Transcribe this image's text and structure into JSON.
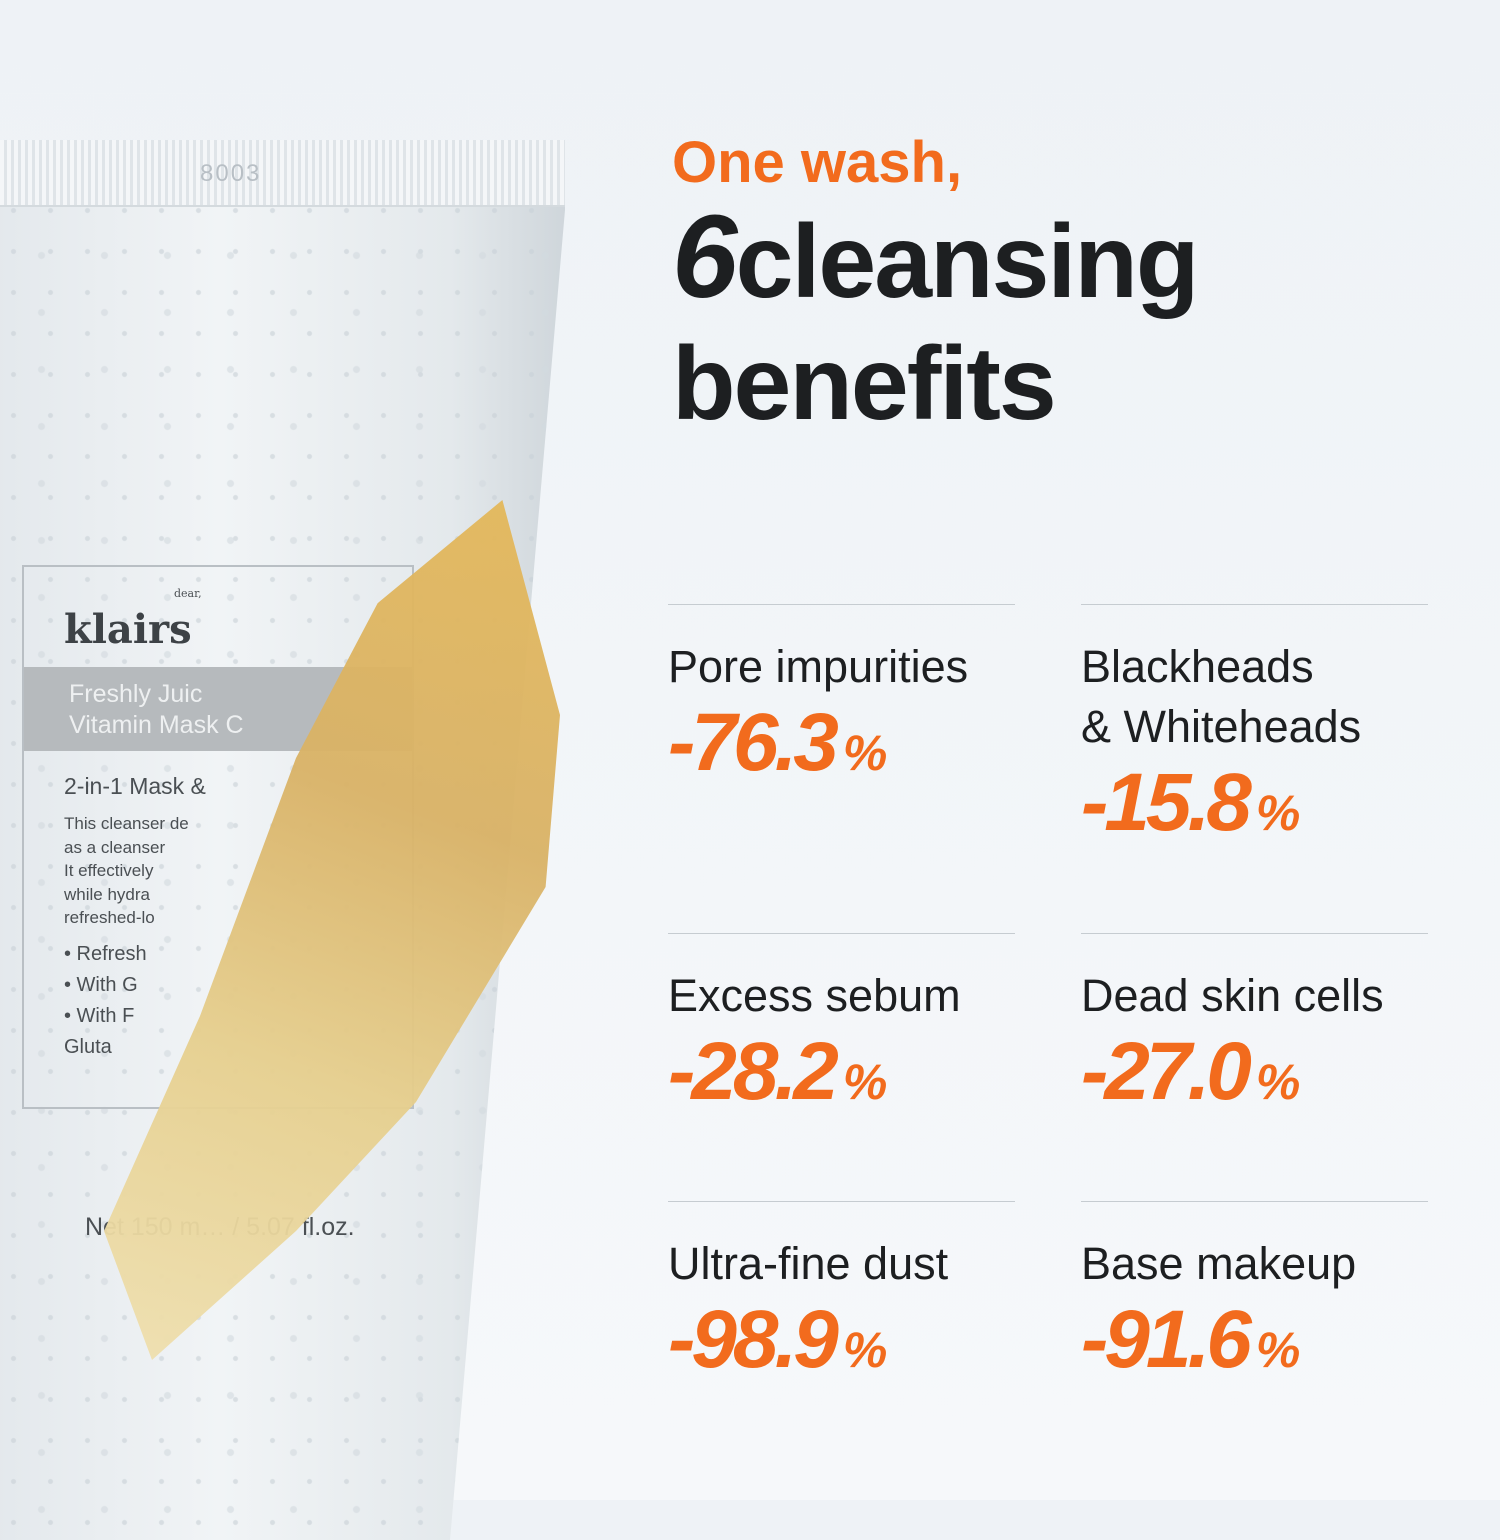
{
  "product": {
    "crimp_code": "8003",
    "brand": "klairs",
    "brand_prefix": "dear,",
    "name_line1": "Freshly Juic",
    "name_line2": "Vitamin Mask C",
    "subtitle": "2-in-1 Mask &",
    "description": "This cleanser de\nas a cleanser\nIt effectively\nwhile hydra\nrefreshed-lo",
    "bullets": "• Refresh\n• With G\n• With F\n   Gluta",
    "net": "Net 150 m… / 5.07 fl.oz."
  },
  "headline": {
    "line1": "One wash,",
    "number": "6",
    "line2": "cleansing",
    "line3": "benefits"
  },
  "accent_color": "#f26b1d",
  "benefits": [
    {
      "label": "Pore impurities",
      "value": "-76.3",
      "unit": "%"
    },
    {
      "label": "Blackheads\n& Whiteheads",
      "value": "-15.8",
      "unit": "%"
    },
    {
      "label": "Excess sebum",
      "value": "-28.2",
      "unit": "%"
    },
    {
      "label": "Dead skin cells",
      "value": "-27.0",
      "unit": "%"
    },
    {
      "label": "Ultra-fine dust",
      "value": "-98.9",
      "unit": "%"
    },
    {
      "label": "Base makeup",
      "value": "-91.6",
      "unit": "%"
    }
  ]
}
